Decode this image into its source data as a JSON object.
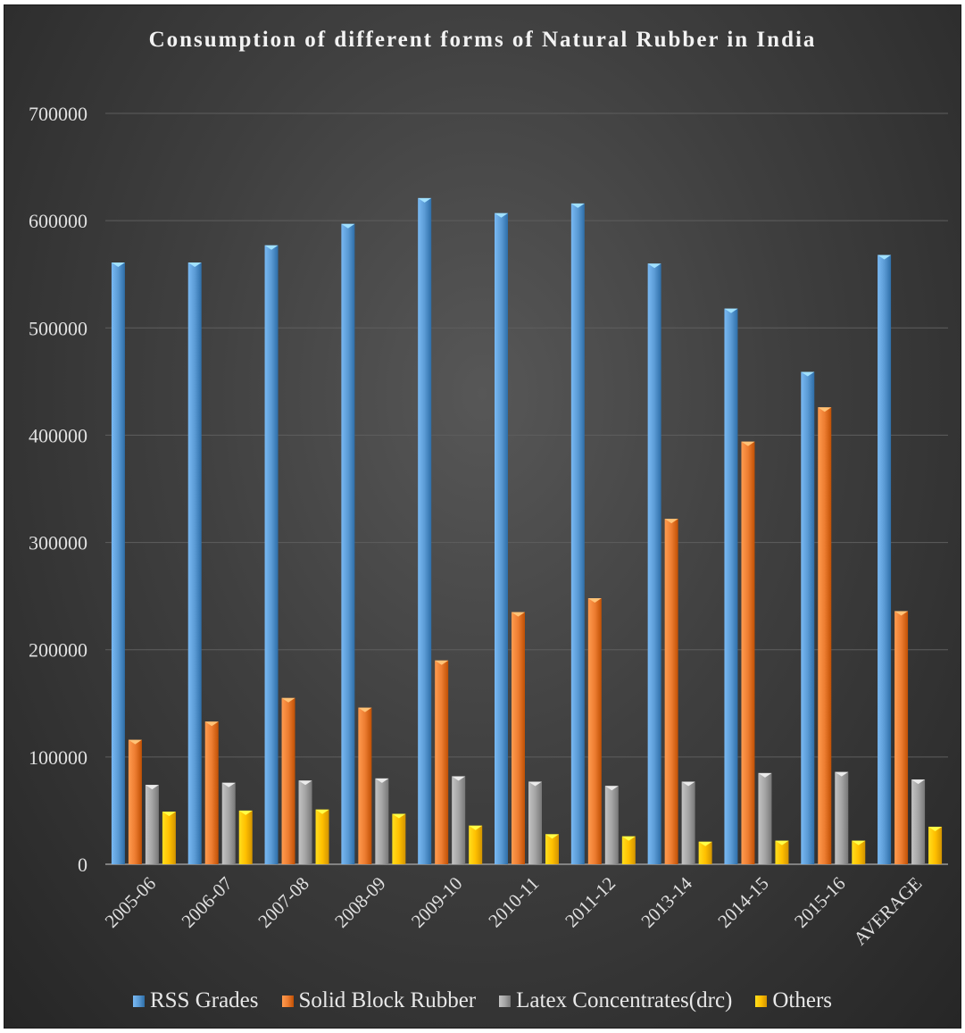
{
  "chart_data": {
    "type": "bar",
    "title": "Consumption of different forms of Natural Rubber in India",
    "xlabel": "",
    "ylabel": "",
    "ylim": [
      0,
      700000
    ],
    "yticks": [
      "0",
      "100000",
      "200000",
      "300000",
      "400000",
      "500000",
      "600000",
      "700000"
    ],
    "grid": true,
    "legend_position": "bottom",
    "categories": [
      "2005-06",
      "2006-07",
      "2007-08",
      "2008-09",
      "2009-10",
      "2010-11",
      "2011-12",
      "2013-14",
      "2014-15",
      "2015-16",
      "AVERAGE"
    ],
    "series": [
      {
        "name": "RSS Grades",
        "color": "#5b9bd5",
        "values": [
          561000,
          561000,
          577000,
          597000,
          621000,
          607000,
          616000,
          560000,
          518000,
          459000,
          568000
        ]
      },
      {
        "name": "Solid Block Rubber",
        "color": "#ed7d31",
        "values": [
          116000,
          133000,
          155000,
          146000,
          190000,
          235000,
          248000,
          322000,
          394000,
          426000,
          236000
        ]
      },
      {
        "name": "Latex Concentrates(drc)",
        "color": "#a5a5a5",
        "values": [
          74000,
          76000,
          78000,
          80000,
          82000,
          77000,
          73000,
          77000,
          85000,
          86000,
          79000
        ]
      },
      {
        "name": "Others",
        "color": "#ffc000",
        "values": [
          49000,
          50000,
          51000,
          47000,
          36000,
          28000,
          26000,
          21000,
          22000,
          22000,
          35000
        ]
      }
    ]
  }
}
